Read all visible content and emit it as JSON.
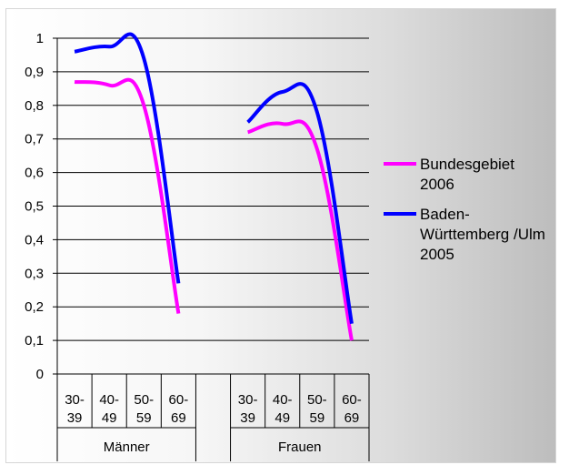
{
  "chart_data": {
    "type": "line",
    "ylim": [
      0,
      1
    ],
    "yticks": [
      "0",
      "0,1",
      "0,2",
      "0,3",
      "0,4",
      "0,5",
      "0,6",
      "0,7",
      "0,8",
      "0,9",
      "1"
    ],
    "groups": [
      {
        "label": "Männer",
        "categories": [
          "30-\n39",
          "40-\n49",
          "50-\n59",
          "60-\n69"
        ]
      },
      {
        "label": "Frauen",
        "categories": [
          "30-\n39",
          "40-\n49",
          "50-\n59",
          "60-\n69"
        ]
      }
    ],
    "series": [
      {
        "name": "Bundesgebiet 2006",
        "color": "#ff00ff",
        "segments": [
          {
            "group": 0,
            "values": [
              0.87,
              0.86,
              0.8,
              0.18
            ]
          },
          {
            "group": 1,
            "values": [
              0.72,
              0.745,
              0.67,
              0.1
            ]
          }
        ]
      },
      {
        "name": "Baden-Württemberg /Ulm 2005",
        "color": "#0000ff",
        "segments": [
          {
            "group": 0,
            "values": [
              0.96,
              0.975,
              0.94,
              0.27
            ]
          },
          {
            "group": 1,
            "values": [
              0.75,
              0.84,
              0.78,
              0.15
            ]
          }
        ]
      }
    ],
    "legend": {
      "position": "right",
      "entries": [
        {
          "lines": [
            "Bundesgebiet",
            "2006"
          ],
          "color": "#ff00ff"
        },
        {
          "lines": [
            "Baden-",
            "Württemberg /Ulm",
            "2005"
          ],
          "color": "#0000ff"
        }
      ]
    }
  }
}
